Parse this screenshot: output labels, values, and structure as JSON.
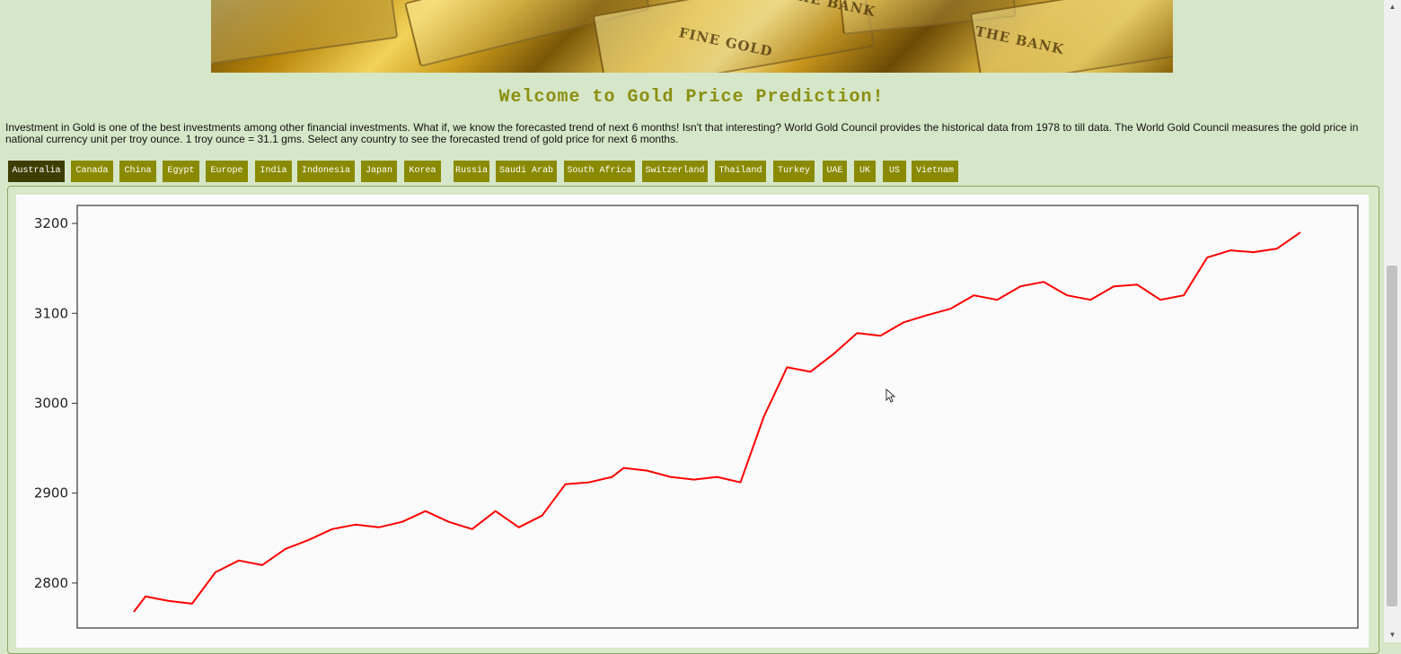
{
  "page": {
    "title": "Welcome to Gold Price Prediction!",
    "intro": "Investment in Gold is one of the best investments among other financial investments. What if, we know the forecasted trend of next 6 months! Isn't that interesting? World Gold Council provides the historical data from 1978 to till data. The World Gold Council measures the gold price in national currency unit per troy ounce. 1 troy ounce = 31.1 gms. Select any country to see the forecasted trend of gold price for next 6 months."
  },
  "banner": {
    "stamps": [
      "FINE GOLD",
      "THE BANK",
      "THE BANK"
    ]
  },
  "tabs": [
    {
      "label": "Australia",
      "active": true
    },
    {
      "label": "Canada",
      "active": false
    },
    {
      "label": "China",
      "active": false
    },
    {
      "label": "Egypt",
      "active": false
    },
    {
      "label": "Europe",
      "active": false
    },
    {
      "label": "India",
      "active": false
    },
    {
      "label": "Indonesia",
      "active": false
    },
    {
      "label": "Japan",
      "active": false
    },
    {
      "label": "Korea",
      "active": false
    },
    {
      "label": "Russia",
      "active": false
    },
    {
      "label": "Saudi Arab",
      "active": false
    },
    {
      "label": "South Africa",
      "active": false
    },
    {
      "label": "Switzerland",
      "active": false
    },
    {
      "label": "Thailand",
      "active": false
    },
    {
      "label": "Turkey",
      "active": false
    },
    {
      "label": "UAE",
      "active": false
    },
    {
      "label": "UK",
      "active": false
    },
    {
      "label": "US",
      "active": false
    },
    {
      "label": "Vietnam",
      "active": false
    }
  ],
  "colors": {
    "background": "#d6e6c8",
    "title": "#8b8f10",
    "tab": "#8a8a00",
    "tab_active": "#3d3d00",
    "series": "#ff0000"
  },
  "chart_data": {
    "type": "line",
    "title": "",
    "xlabel": "",
    "ylabel": "",
    "ylim": [
      2750,
      3220
    ],
    "yticks": [
      2800,
      2900,
      3000,
      3100,
      3200
    ],
    "grid": false,
    "x": [
      0,
      1,
      3,
      5,
      7,
      9,
      11,
      13,
      15,
      17,
      19,
      21,
      23,
      25,
      27,
      29,
      31,
      33,
      35,
      37,
      39,
      41,
      42,
      44,
      46,
      48,
      50,
      52,
      54,
      56,
      58,
      60,
      62,
      64,
      66,
      68,
      70,
      72,
      74,
      76,
      78,
      80,
      82,
      84,
      86,
      88,
      90,
      92,
      94,
      96,
      98,
      100
    ],
    "series": [
      {
        "values": [
          2768,
          2785,
          2780,
          2777,
          2812,
          2825,
          2820,
          2838,
          2848,
          2860,
          2865,
          2862,
          2868,
          2880,
          2868,
          2860,
          2880,
          2862,
          2875,
          2910,
          2912,
          2918,
          2928,
          2925,
          2918,
          2915,
          2918,
          2912,
          2985,
          3040,
          3035,
          3055,
          3078,
          3075,
          3090,
          3098,
          3105,
          3120,
          3115,
          3130,
          3135,
          3120,
          3115,
          3130,
          3132,
          3115,
          3120,
          3162,
          3170,
          3168,
          3172,
          3190
        ]
      }
    ]
  }
}
